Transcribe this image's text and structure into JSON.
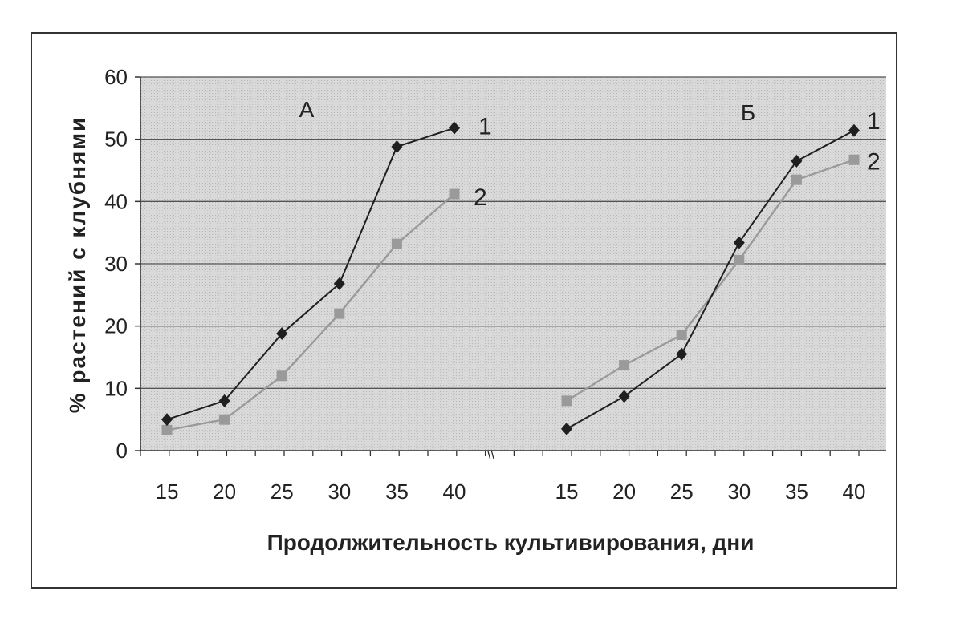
{
  "chart_data": {
    "type": "line",
    "ylabel": "% растений с клубнями",
    "xlabel": "Продолжительность культивирования, дни",
    "ylim": [
      0,
      60
    ],
    "yticks": [
      "0",
      "10",
      "20",
      "30",
      "40",
      "50",
      "60"
    ],
    "grid": true,
    "break_mark": "\\\\",
    "panels": [
      {
        "label": "А",
        "x": [
          15,
          20,
          25,
          30,
          35,
          40
        ],
        "x_ticks": [
          "15",
          "20",
          "25",
          "30",
          "35",
          "40"
        ],
        "series": [
          {
            "name": "1",
            "marker": "diamond",
            "color": "#1f1f1f",
            "values": [
              5,
              8,
              18.8,
              26.8,
              48.8,
              51.8
            ]
          },
          {
            "name": "2",
            "marker": "square",
            "color": "#9a9a9a",
            "values": [
              3.3,
              5,
              12,
              22,
              33.2,
              41.2
            ]
          }
        ]
      },
      {
        "label": "Б",
        "x": [
          15,
          20,
          25,
          30,
          35,
          40
        ],
        "x_ticks": [
          "15",
          "20",
          "25",
          "30",
          "35",
          "40"
        ],
        "series": [
          {
            "name": "1",
            "marker": "diamond",
            "color": "#1f1f1f",
            "values": [
              3.5,
              8.7,
              15.5,
              33.4,
              46.5,
              51.4
            ]
          },
          {
            "name": "2",
            "marker": "square",
            "color": "#9a9a9a",
            "values": [
              8,
              13.7,
              18.6,
              30.6,
              43.5,
              46.7
            ]
          }
        ]
      }
    ]
  }
}
